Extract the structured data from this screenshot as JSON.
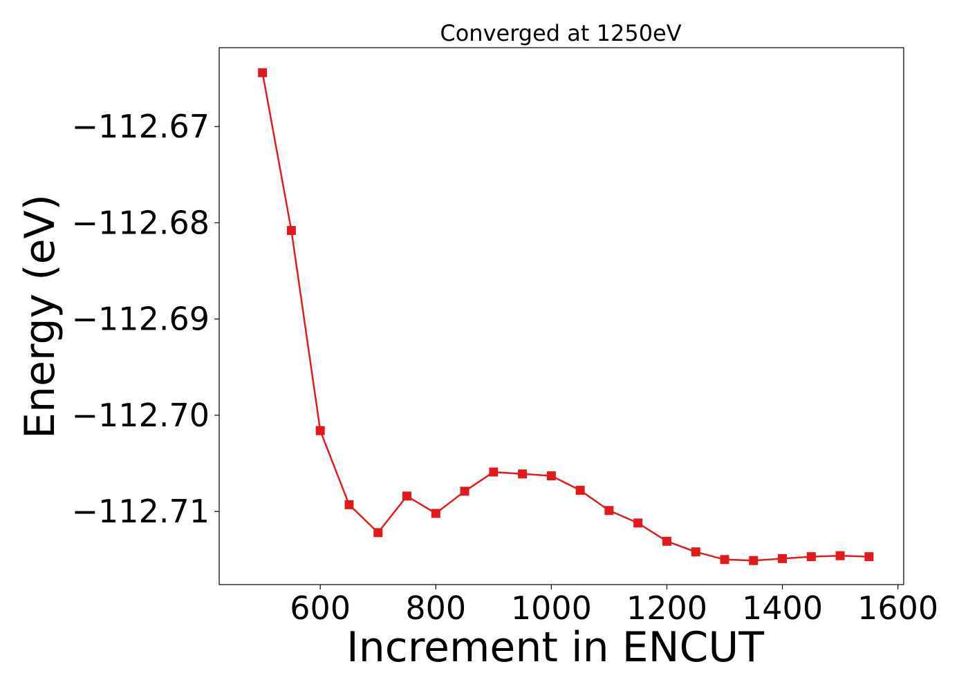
{
  "chart_data": {
    "type": "line",
    "title": "Converged at 1250eV",
    "xlabel": "Increment in ENCUT",
    "ylabel": "Energy (eV)",
    "xlim": [
      425,
      1610
    ],
    "ylim": [
      -112.7176,
      -112.6618
    ],
    "xticks": [
      600,
      800,
      1000,
      1200,
      1400,
      1600
    ],
    "yticks": [
      -112.67,
      -112.68,
      -112.69,
      -112.7,
      -112.71
    ],
    "ytick_labels": [
      "−112.67",
      "−112.68",
      "−112.69",
      "−112.70",
      "−112.71"
    ],
    "grid": false,
    "legend": "none",
    "series": [
      {
        "color": "#e31a1c",
        "marker": "square",
        "x": [
          500,
          550,
          600,
          650,
          700,
          750,
          800,
          850,
          900,
          950,
          1000,
          1050,
          1100,
          1150,
          1200,
          1250,
          1300,
          1350,
          1400,
          1450,
          1500,
          1550
        ],
        "y": [
          -112.6644,
          -112.6808,
          -112.7016,
          -112.7093,
          -112.7122,
          -112.7084,
          -112.7102,
          -112.7079,
          -112.7059,
          -112.7061,
          -112.7063,
          -112.7078,
          -112.7099,
          -112.7112,
          -112.7131,
          -112.7142,
          -112.715,
          -112.7151,
          -112.7149,
          -112.7147,
          -112.7146,
          -112.7147
        ]
      }
    ]
  }
}
